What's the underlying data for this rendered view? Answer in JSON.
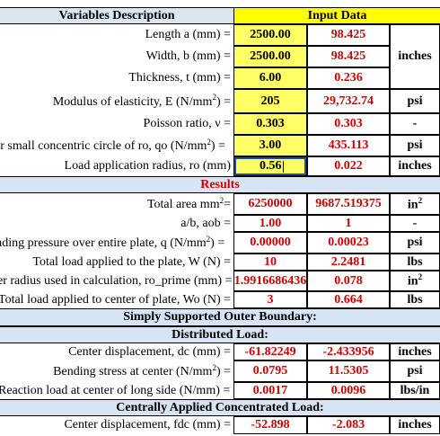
{
  "header": {
    "left": "Variables Description",
    "right": "Input Data"
  },
  "inputs": [
    {
      "label": "Length a (mm) =",
      "value": "2500.00",
      "converted": "98.425",
      "unit": "inches"
    },
    {
      "label": "Width, b (mm) =",
      "value": "2500.00",
      "converted": "98.425",
      "unit": ""
    },
    {
      "label": "Thickness, t (mm) =",
      "value": "6.00",
      "converted": "0.236",
      "unit": ""
    },
    {
      "label": "Modulus of elasticity, E (N/mm",
      "label_sup": "2",
      "label_tail": ") =",
      "value": "205",
      "converted": "29,732.74",
      "unit": "psi"
    },
    {
      "label": "Poisson ratio, ν =",
      "value": "0.303",
      "converted": "0.303",
      "unit": "-"
    },
    {
      "label": "er small concentric circle of ro, qo (N/mm",
      "label_sup": "2",
      "label_tail": ") =",
      "value": "3.00",
      "converted": "435.113",
      "unit": "psi"
    },
    {
      "label": "Load application radius, ro (mm)",
      "value": "0.56",
      "converted": "0.022",
      "unit": "inches"
    }
  ],
  "results_title": "Results",
  "results": [
    {
      "label": "Total area mm",
      "label_sup": "2",
      "label_tail": " =",
      "value": "6250000",
      "converted": "9687.519375",
      "unit": "in",
      "unit_sup": "2"
    },
    {
      "label": "a/b, aob =",
      "value": "1.00",
      "converted": "1",
      "unit": "-"
    },
    {
      "label": "ading pressure over entire plate, q (N/mm",
      "label_sup": "2",
      "label_tail": ") =",
      "value": "0.00000",
      "converted": "0.00023",
      "unit": "psi"
    },
    {
      "label": "Total load applied to the plate, W (N) =",
      "value": "10",
      "converted": "2.2481",
      "unit": "lbs"
    },
    {
      "label": "er radius used in calculation, ro_prime (mm) =",
      "value": "1.9916686436",
      "converted": "0.078",
      "unit": "in",
      "unit_sup": "2"
    },
    {
      "label": "Total load applied to center of plate, Wo (N) =",
      "value": "3",
      "converted": "0.664",
      "unit": "lbs"
    }
  ],
  "section_simply": "Simply Supported Outer Boundary:",
  "section_distributed": "Distributed Load:",
  "distributed": [
    {
      "label": "Center displacement, dc (mm) =",
      "value": "-61.82249",
      "converted": "-2.433956",
      "unit": "inches"
    },
    {
      "label": "Bending stress at center (N/mm",
      "label_sup": "2",
      "label_tail": ") =",
      "value": "0.0795",
      "converted": "11.5305",
      "unit": "psi"
    },
    {
      "label": "Reaction load at center of long side (N/mm) =",
      "value": "0.0017",
      "converted": "0.0096",
      "unit": "lbs/in"
    }
  ],
  "section_concentrated": "Centrally Applied Concentrated Load:",
  "concentrated": [
    {
      "label": "Center displacement, fdc (mm) =",
      "value": "-52.898",
      "converted": "-2.083",
      "unit": "inches"
    }
  ]
}
